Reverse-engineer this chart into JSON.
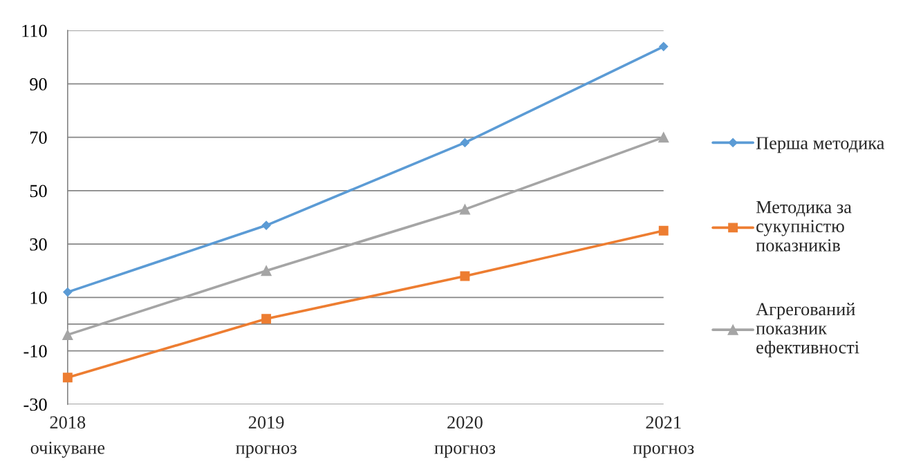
{
  "chart_data": {
    "type": "line",
    "categories": [
      "2018\nочікуване",
      "2019\nпрогноз",
      "2020\nпрогноз",
      "2021\nпрогноз"
    ],
    "series": [
      {
        "name": "Перша методика",
        "color": "#5b9bd5",
        "marker": "diamond",
        "values": [
          12,
          37,
          68,
          104
        ]
      },
      {
        "name": "Методика за\nсукупністю\nпоказників",
        "color": "#ed7d31",
        "marker": "square",
        "values": [
          -20,
          2,
          18,
          35
        ]
      },
      {
        "name": "Агрегований\nпоказник\nефективності",
        "color": "#a5a5a5",
        "marker": "triangle",
        "values": [
          -4,
          20,
          43,
          70
        ]
      }
    ],
    "ylim": [
      -30,
      110
    ],
    "yticks": [
      -30,
      -10,
      10,
      30,
      50,
      70,
      90,
      110
    ],
    "grid": "y",
    "legend": "right",
    "line_style": "solid"
  }
}
